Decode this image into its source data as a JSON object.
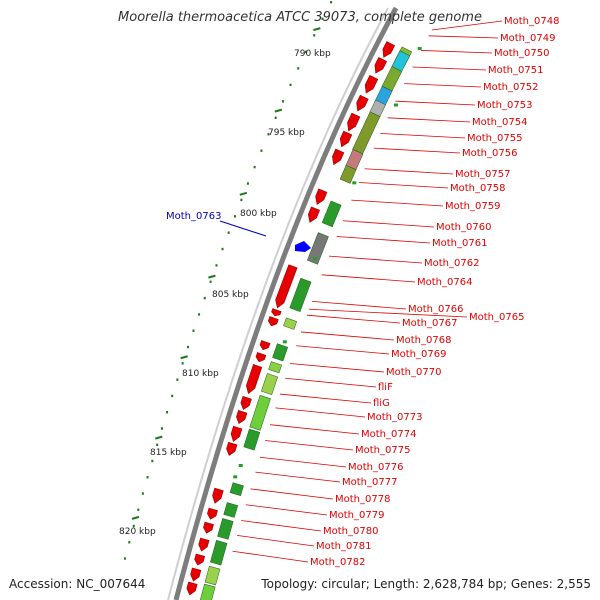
{
  "title": "Moorella thermoacetica ATCC 39073, complete genome",
  "footer": {
    "accession": "Accession: NC_007644",
    "summary": "Topology: circular; Length: 2,628,784 bp; Genes: 2,555"
  },
  "colors": {
    "backbone": "#808080",
    "forward_gene": "#e60000",
    "reverse_gene": "#2a9a2a",
    "label_red": "#e00000",
    "label_blue": "#0000cc",
    "tick_green": "#1a7a1a"
  },
  "scale": {
    "ticks": [
      "790 kbp",
      "795 kbp",
      "800 kbp",
      "805 kbp",
      "810 kbp",
      "815 kbp",
      "820 kbp"
    ]
  },
  "gene_labels": [
    "Moth_0748",
    "Moth_0749",
    "Moth_0750",
    "Moth_0751",
    "Moth_0752",
    "Moth_0753",
    "Moth_0754",
    "Moth_0755",
    "Moth_0756",
    "Moth_0757",
    "Moth_0758",
    "Moth_0759",
    "Moth_0760",
    "Moth_0761",
    "Moth_0762",
    "Moth_0764",
    "Moth_0766",
    "Moth_0765",
    "Moth_0767",
    "Moth_0768",
    "Moth_0769",
    "Moth_0770",
    "fliF",
    "fliG",
    "Moth_0773",
    "Moth_0774",
    "Moth_0775",
    "Moth_0776",
    "Moth_0777",
    "Moth_0778",
    "Moth_0779",
    "Moth_0780",
    "Moth_0781",
    "Moth_0782"
  ],
  "highlight_label": "Moth_0763"
}
